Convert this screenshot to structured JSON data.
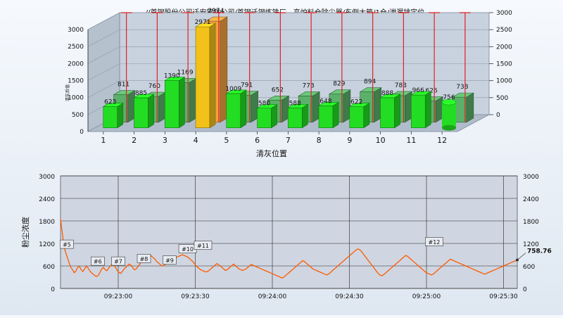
{
  "header": {
    "title": "//首钢股份公司迁安钢铁公司/首钢迁钢炼铁厂—高炉料仓除尘器/东侧大箱/1仓/泄漏排定位"
  },
  "chart_data": [
    {
      "type": "bar",
      "style": "3d",
      "title": "",
      "xlabel": "清灰位置",
      "ylabel": "清灰后值",
      "categories": [
        "1",
        "2",
        "3",
        "4",
        "5",
        "6",
        "7",
        "8",
        "9",
        "10",
        "11",
        "12"
      ],
      "series": [
        {
          "name": "",
          "color": "#22dd22",
          "values": [
            623,
            885,
            1390,
            2971,
            1009,
            580,
            588,
            648,
            622,
            888,
            966,
            756
          ]
        },
        {
          "name": "",
          "color": "#5bb06a",
          "values": [
            811,
            760,
            1169,
            2974,
            791,
            652,
            773,
            829,
            894,
            783,
            626,
            738
          ]
        }
      ],
      "highlight": {
        "category": "4",
        "color": "#f2c21a"
      },
      "highlight_back_color": "#f0a040",
      "last_bar_shape": "cylinder",
      "reference_line_color": "#dd2222",
      "ylim": [
        0,
        3000
      ],
      "y_ticks": [
        0,
        500,
        1000,
        1500,
        2000,
        2500,
        3000
      ],
      "grid": true
    },
    {
      "type": "line",
      "title": "",
      "xlabel": "",
      "ylabel": "粉尘浓度",
      "x_ticks": [
        "09:23:00",
        "09:23:30",
        "09:24:00",
        "09:24:30",
        "09:25:00",
        "09:25:30"
      ],
      "ylim": [
        0,
        3000
      ],
      "y_ticks": [
        0,
        600,
        1200,
        1800,
        2400,
        3000
      ],
      "line_color": "#ff5a00",
      "grid": true,
      "last_value_label": "758.76",
      "series": [
        {
          "name": "",
          "values": [
            1850,
            1500,
            1120,
            960,
            820,
            680,
            560,
            500,
            420,
            470,
            560,
            590,
            500,
            450,
            520,
            600,
            550,
            470,
            420,
            380,
            340,
            320,
            350,
            430,
            520,
            560,
            500,
            470,
            540,
            600,
            640,
            620,
            560,
            480,
            430,
            400,
            450,
            520,
            560,
            610,
            650,
            620,
            560,
            500,
            520,
            580,
            640,
            700,
            760,
            820,
            860,
            890,
            900,
            860,
            820,
            780,
            720,
            680,
            640,
            610,
            600,
            640,
            680,
            720,
            760,
            780,
            800,
            820,
            840,
            860,
            880,
            900,
            880,
            860,
            840,
            800,
            760,
            720,
            660,
            600,
            560,
            520,
            490,
            470,
            450,
            440,
            460,
            500,
            540,
            580,
            620,
            660,
            640,
            600,
            560,
            520,
            480,
            500,
            540,
            580,
            620,
            650,
            600,
            560,
            520,
            500,
            480,
            500,
            520,
            560,
            600,
            640,
            620,
            600,
            580,
            560,
            540,
            520,
            500,
            480,
            460,
            440,
            420,
            400,
            380,
            360,
            340,
            320,
            300,
            280,
            300,
            340,
            380,
            420,
            460,
            500,
            540,
            580,
            620,
            660,
            700,
            740,
            720,
            680,
            640,
            600,
            560,
            520,
            500,
            480,
            460,
            440,
            420,
            400,
            380,
            360,
            380,
            420,
            460,
            500,
            540,
            580,
            620,
            660,
            700,
            740,
            780,
            820,
            860,
            900,
            940,
            980,
            1020,
            1050,
            1040,
            1000,
            940,
            880,
            820,
            760,
            700,
            640,
            580,
            520,
            460,
            400,
            360,
            340,
            360,
            400,
            440,
            480,
            520,
            560,
            600,
            640,
            680,
            720,
            760,
            800,
            840,
            880,
            860,
            820,
            780,
            740,
            700,
            660,
            620,
            580,
            540,
            500,
            460,
            420,
            400,
            380,
            360,
            380,
            420,
            460,
            500,
            540,
            580,
            620,
            660,
            700,
            740,
            780,
            760,
            740,
            720,
            700,
            680,
            660,
            640,
            620,
            600,
            580,
            560,
            540,
            520,
            500,
            480,
            460,
            440,
            420,
            400,
            380,
            400,
            420,
            440,
            460,
            480,
            500,
            520,
            540,
            560,
            580,
            600,
            620,
            640,
            660,
            680,
            700,
            720,
            740,
            758.76
          ]
        }
      ],
      "annotations": [
        {
          "label": "#5",
          "x": "09:22:40",
          "y": 1160
        },
        {
          "label": "#6",
          "x": "09:22:52",
          "y": 710
        },
        {
          "label": "#7",
          "x": "09:23:00",
          "y": 710
        },
        {
          "label": "#8",
          "x": "09:23:10",
          "y": 780
        },
        {
          "label": "#9",
          "x": "09:23:20",
          "y": 740
        },
        {
          "label": "#10",
          "x": "09:23:27",
          "y": 1040
        },
        {
          "label": "#11",
          "x": "09:23:33",
          "y": 1130
        },
        {
          "label": "#12",
          "x": "09:25:03",
          "y": 1230
        }
      ]
    }
  ]
}
